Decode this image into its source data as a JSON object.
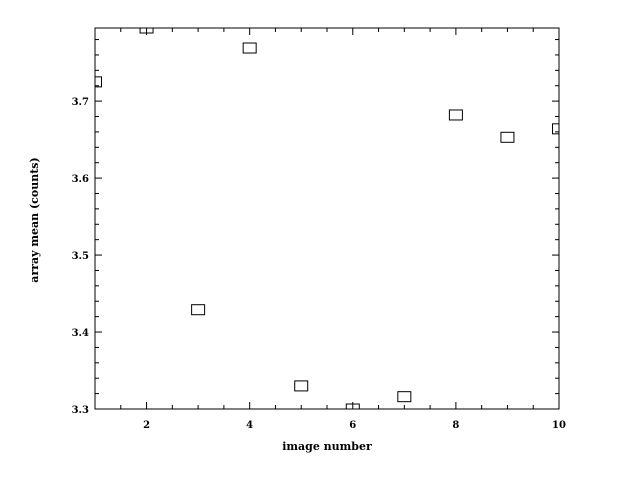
{
  "chart_data": {
    "type": "scatter",
    "xlabel": "image number",
    "ylabel": "array mean (counts)",
    "xlim": [
      1,
      10
    ],
    "ylim": [
      3.3,
      3.795
    ],
    "x_ticks": [
      2,
      4,
      6,
      8,
      10
    ],
    "x_tick_labels": [
      "2",
      "4",
      "6",
      "8",
      "10"
    ],
    "x_minor_step": 0.5,
    "y_ticks": [
      3.3,
      3.4,
      3.5,
      3.6,
      3.7
    ],
    "y_tick_labels": [
      "3.3",
      "3.4",
      "3.5",
      "3.6",
      "3.7"
    ],
    "y_minor_step": 0.02,
    "grid": false,
    "marker": "open-square",
    "colors": {
      "marker": "#000000",
      "axes": "#000000",
      "background": "#ffffff"
    },
    "x": [
      1,
      2,
      3,
      4,
      5,
      6,
      7,
      8,
      9,
      10
    ],
    "y": [
      3.725,
      3.795,
      3.429,
      3.769,
      3.33,
      3.3,
      3.316,
      3.682,
      3.653,
      3.664
    ]
  }
}
